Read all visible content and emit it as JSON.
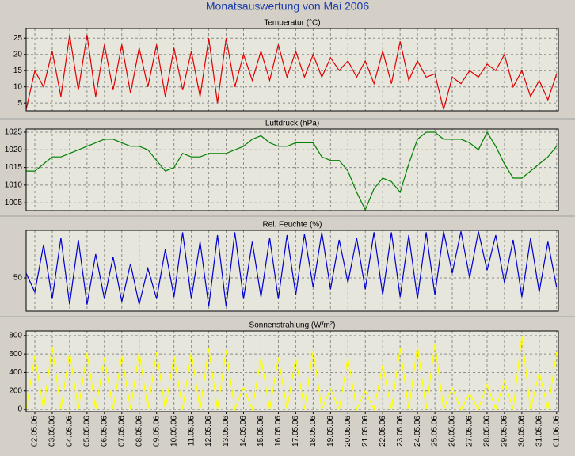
{
  "title": "Monatsauswertung von Mai 2006",
  "chart_data": [
    {
      "type": "line",
      "title": "Temperatur (°C)",
      "color": "#e00000",
      "x": [
        0.5,
        1,
        1.5,
        2,
        2.5,
        3,
        3.5,
        4,
        4.5,
        5,
        5.5,
        6,
        6.5,
        7,
        7.5,
        8,
        8.5,
        9,
        9.5,
        10,
        10.5,
        11,
        11.5,
        12,
        12.5,
        13,
        13.5,
        14,
        14.5,
        15,
        15.5,
        16,
        16.5,
        17,
        17.5,
        18,
        18.5,
        19,
        19.5,
        20,
        20.5,
        21,
        21.5,
        22,
        22.5,
        23,
        23.5,
        24,
        24.5,
        25,
        25.5,
        26,
        26.5,
        27,
        27.5,
        28,
        28.5,
        29,
        29.5,
        30,
        30.5,
        31
      ],
      "values": [
        3,
        15,
        10,
        21,
        7,
        26,
        9,
        26,
        7,
        23,
        9,
        23,
        8,
        22,
        10,
        23,
        7,
        22,
        9,
        21,
        7,
        25,
        5,
        25,
        10,
        20,
        12,
        21,
        12,
        23,
        13,
        21,
        13,
        20,
        13,
        19,
        15,
        18,
        13,
        18,
        11,
        21,
        11,
        24,
        12,
        18,
        13,
        14,
        3,
        13,
        11,
        15,
        13,
        17,
        15,
        20,
        10,
        15,
        7,
        12,
        6,
        14
      ],
      "xlim": [
        0.5,
        31.1
      ],
      "ylim": [
        2.6,
        28
      ],
      "yticks": [
        5,
        10,
        15,
        20,
        25
      ],
      "grid": true
    },
    {
      "type": "line",
      "title": "Luftdruck (hPa)",
      "color": "#008000",
      "x": [
        0.5,
        1,
        1.5,
        2,
        2.5,
        3,
        3.5,
        4,
        4.5,
        5,
        5.5,
        6,
        6.5,
        7,
        7.5,
        8,
        8.5,
        9,
        9.5,
        10,
        10.5,
        11,
        11.5,
        12,
        12.5,
        13,
        13.5,
        14,
        14.5,
        15,
        15.5,
        16,
        16.5,
        17,
        17.5,
        18,
        18.5,
        19,
        19.5,
        20,
        20.5,
        21,
        21.5,
        22,
        22.5,
        23,
        23.5,
        24,
        24.5,
        25,
        25.5,
        26,
        26.5,
        27,
        27.5,
        28,
        28.5,
        29,
        29.5,
        30,
        30.5,
        31
      ],
      "values": [
        1014,
        1014,
        1016,
        1018,
        1018,
        1019,
        1020,
        1021,
        1022,
        1023,
        1023,
        1022,
        1021,
        1021,
        1020,
        1017,
        1014,
        1015,
        1019,
        1018,
        1018,
        1019,
        1019,
        1019,
        1020,
        1021,
        1023,
        1024,
        1022,
        1021,
        1021,
        1022,
        1022,
        1022,
        1018,
        1017,
        1017,
        1014,
        1008,
        1003,
        1009,
        1012,
        1011,
        1008,
        1016,
        1023,
        1025,
        1025,
        1023,
        1023,
        1023,
        1022,
        1020,
        1025,
        1021,
        1016,
        1012,
        1012,
        1014,
        1016,
        1018,
        1021
      ],
      "xlim": [
        0.5,
        31.1
      ],
      "ylim": [
        1002.8,
        1025.9
      ],
      "yticks": [
        1005,
        1010,
        1015,
        1020,
        1025
      ],
      "grid": true
    },
    {
      "type": "line",
      "title": "Rel. Feuchte (%)",
      "color": "#0000d0",
      "x": [
        0.5,
        1,
        1.5,
        2,
        2.5,
        3,
        3.5,
        4,
        4.5,
        5,
        5.5,
        6,
        6.5,
        7,
        7.5,
        8,
        8.5,
        9,
        9.5,
        10,
        10.5,
        11,
        11.5,
        12,
        12.5,
        13,
        13.5,
        14,
        14.5,
        15,
        15.5,
        16,
        16.5,
        17,
        17.5,
        18,
        18.5,
        19,
        19.5,
        20,
        20.5,
        21,
        21.5,
        22,
        22.5,
        23,
        23.5,
        24,
        24.5,
        25,
        25.5,
        26,
        26.5,
        27,
        27.5,
        28,
        28.5,
        29,
        29.5,
        30,
        30.5,
        31
      ],
      "values": [
        55,
        35,
        85,
        28,
        92,
        22,
        90,
        22,
        75,
        28,
        72,
        25,
        65,
        22,
        60,
        28,
        80,
        30,
        98,
        28,
        88,
        20,
        95,
        20,
        98,
        28,
        88,
        30,
        92,
        28,
        95,
        32,
        96,
        40,
        98,
        38,
        90,
        45,
        92,
        38,
        98,
        32,
        98,
        30,
        95,
        28,
        98,
        32,
        99,
        55,
        99,
        50,
        99,
        58,
        95,
        45,
        90,
        30,
        92,
        35,
        88,
        40
      ],
      "xlim": [
        0.5,
        31.1
      ],
      "ylim": [
        15,
        100
      ],
      "yticks": [
        50
      ],
      "grid": true
    },
    {
      "type": "line",
      "title": "Sonnenstrahlung (W/m²)",
      "color": "#ffff00",
      "x": [
        0.5,
        1,
        1.5,
        2,
        2.5,
        3,
        3.5,
        4,
        4.5,
        5,
        5.5,
        6,
        6.5,
        7,
        7.5,
        8,
        8.5,
        9,
        9.5,
        10,
        10.5,
        11,
        11.5,
        12,
        12.5,
        13,
        13.5,
        14,
        14.5,
        15,
        15.5,
        16,
        16.5,
        17,
        17.5,
        18,
        18.5,
        19,
        19.5,
        20,
        20.5,
        21,
        21.5,
        22,
        22.5,
        23,
        23.5,
        24,
        24.5,
        25,
        25.5,
        26,
        26.5,
        27,
        27.5,
        28,
        28.5,
        29,
        29.5,
        30,
        30.5,
        31
      ],
      "values": [
        0,
        580,
        0,
        680,
        0,
        620,
        0,
        610,
        0,
        560,
        0,
        580,
        0,
        620,
        0,
        620,
        0,
        580,
        0,
        620,
        0,
        660,
        0,
        640,
        0,
        240,
        0,
        560,
        0,
        560,
        0,
        560,
        0,
        640,
        0,
        220,
        0,
        560,
        0,
        200,
        0,
        480,
        0,
        660,
        0,
        690,
        0,
        710,
        0,
        230,
        0,
        170,
        0,
        270,
        0,
        310,
        0,
        790,
        0,
        400,
        0,
        620
      ],
      "xlim": [
        0.5,
        31.1
      ],
      "ylim": [
        -25,
        850
      ],
      "yticks": [
        0,
        200,
        400,
        600,
        800
      ],
      "grid": true,
      "xticks": [
        {
          "value": 1,
          "label": "02.05.06"
        },
        {
          "value": 2,
          "label": "03.05.06"
        },
        {
          "value": 3,
          "label": "04.05.06"
        },
        {
          "value": 4,
          "label": "05.05.06"
        },
        {
          "value": 5,
          "label": "06.05.06"
        },
        {
          "value": 6,
          "label": "07.05.06"
        },
        {
          "value": 7,
          "label": "08.05.06"
        },
        {
          "value": 8,
          "label": "09.05.06"
        },
        {
          "value": 9,
          "label": "10.05.06"
        },
        {
          "value": 10,
          "label": "11.05.06"
        },
        {
          "value": 11,
          "label": "12.05.06"
        },
        {
          "value": 12,
          "label": "13.05.06"
        },
        {
          "value": 13,
          "label": "14.05.06"
        },
        {
          "value": 14,
          "label": "15.05.06"
        },
        {
          "value": 15,
          "label": "16.05.06"
        },
        {
          "value": 16,
          "label": "17.05.06"
        },
        {
          "value": 17,
          "label": "18.05.06"
        },
        {
          "value": 18,
          "label": "19.05.06"
        },
        {
          "value": 19,
          "label": "20.05.06"
        },
        {
          "value": 20,
          "label": "21.05.06"
        },
        {
          "value": 21,
          "label": "22.05.06"
        },
        {
          "value": 22,
          "label": "23.05.06"
        },
        {
          "value": 23,
          "label": "24.05.06"
        },
        {
          "value": 24,
          "label": "25.05.06"
        },
        {
          "value": 25,
          "label": "26.05.06"
        },
        {
          "value": 26,
          "label": "27.05.06"
        },
        {
          "value": 27,
          "label": "28.05.06"
        },
        {
          "value": 28,
          "label": "29.05.06"
        },
        {
          "value": 29,
          "label": "30.05.06"
        },
        {
          "value": 30,
          "label": "31.05.06"
        },
        {
          "value": 31,
          "label": "01.06.06"
        }
      ]
    }
  ]
}
